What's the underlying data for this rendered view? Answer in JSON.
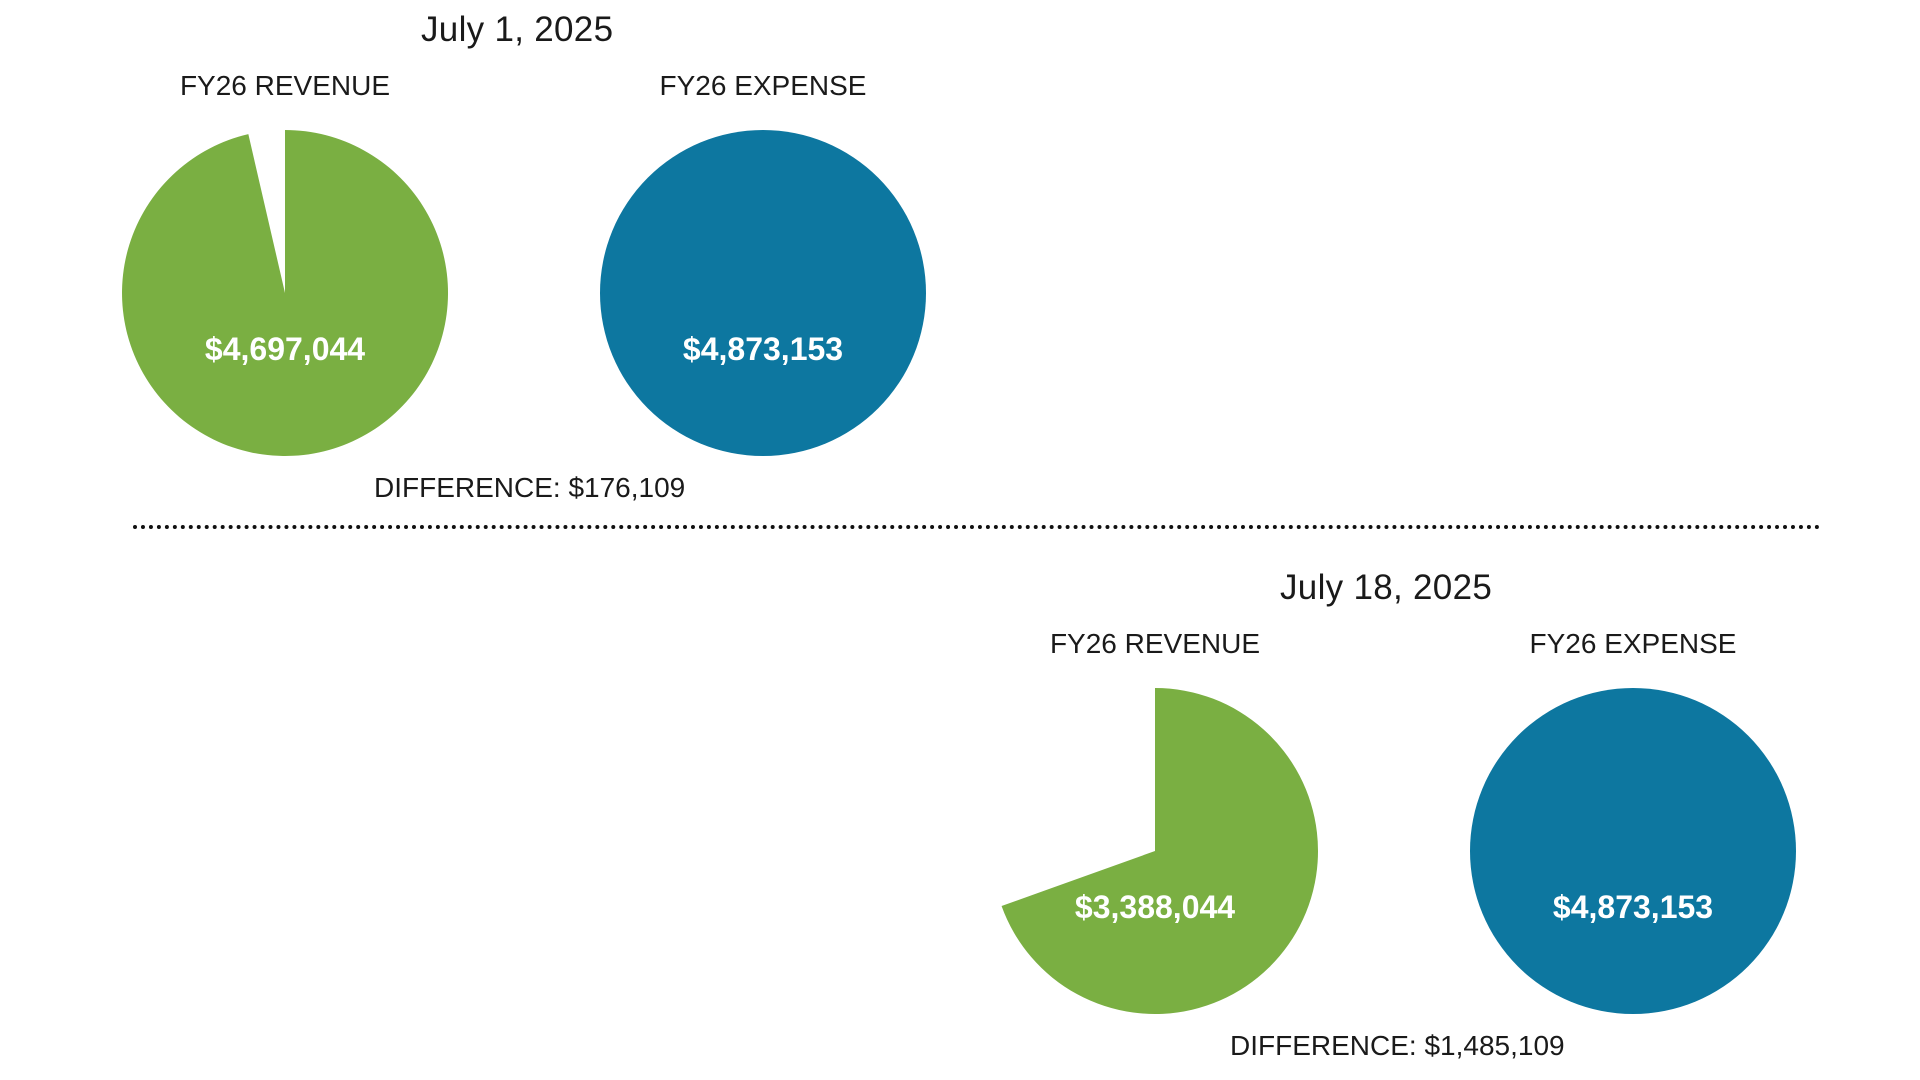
{
  "colors": {
    "revenue": "#7aaf42",
    "expense": "#0d77a0",
    "value_text": "#ffffff"
  },
  "chart_data": [
    {
      "type": "pie",
      "title": "July 1, 2025",
      "footer": "DIFFERENCE: $176,109",
      "pies": [
        {
          "label": "FY26 REVENUE",
          "value_text": "$4,697,044",
          "value": 4697044,
          "fraction": 0.9639,
          "color": "#7aaf42"
        },
        {
          "label": "FY26 EXPENSE",
          "value_text": "$4,873,153",
          "value": 4873153,
          "fraction": 1.0,
          "color": "#0d77a0"
        }
      ]
    },
    {
      "type": "pie",
      "title": "July 18, 2025",
      "footer": "DIFFERENCE: $1,485,109",
      "pies": [
        {
          "label": "FY26 REVENUE",
          "value_text": "$3,388,044",
          "value": 3388044,
          "fraction": 0.6952,
          "color": "#7aaf42"
        },
        {
          "label": "FY26 EXPENSE",
          "value_text": "$4,873,153",
          "value": 4873153,
          "fraction": 1.0,
          "color": "#0d77a0"
        }
      ]
    }
  ]
}
